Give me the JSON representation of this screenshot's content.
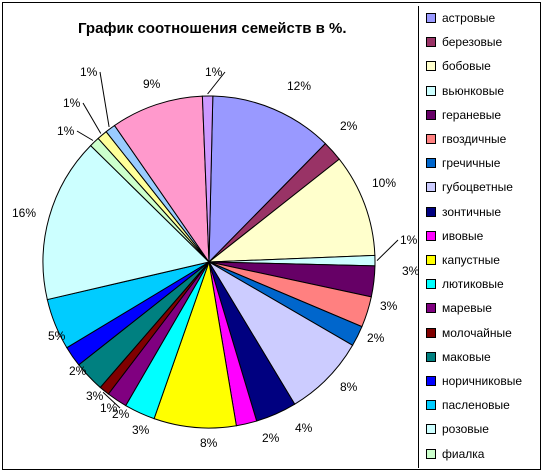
{
  "chart_data": {
    "type": "pie",
    "title": "График соотношения семейств в %.",
    "legend_position": "right",
    "slices": [
      {
        "label": "астровые",
        "value": 12,
        "value_label": "12%",
        "color": "#9999ff"
      },
      {
        "label": "березовые",
        "value": 2,
        "value_label": "2%",
        "color": "#993366"
      },
      {
        "label": "бобовые",
        "value": 10,
        "value_label": "10%",
        "color": "#ffffcc"
      },
      {
        "label": "вьюнковые",
        "value": 1,
        "value_label": "1%",
        "color": "#ccffff"
      },
      {
        "label": "гераневые",
        "value": 3,
        "value_label": "3%",
        "color": "#660066"
      },
      {
        "label": "гвоздичные",
        "value": 3,
        "value_label": "3%",
        "color": "#ff8080"
      },
      {
        "label": "гречичные",
        "value": 2,
        "value_label": "2%",
        "color": "#0066cc"
      },
      {
        "label": "губоцветные",
        "value": 8,
        "value_label": "8%",
        "color": "#ccccff"
      },
      {
        "label": "зонтичные",
        "value": 4,
        "value_label": "4%",
        "color": "#000080"
      },
      {
        "label": "ивовые",
        "value": 2,
        "value_label": "2%",
        "color": "#ff00ff"
      },
      {
        "label": "капустные",
        "value": 8,
        "value_label": "8%",
        "color": "#ffff00"
      },
      {
        "label": "лютиковые",
        "value": 3,
        "value_label": "3%",
        "color": "#00ffff"
      },
      {
        "label": "маревые",
        "value": 2,
        "value_label": "2%",
        "color": "#800080"
      },
      {
        "label": "молочайные",
        "value": 1,
        "value_label": "1%",
        "color": "#800000"
      },
      {
        "label": "маковые",
        "value": 3,
        "value_label": "3%",
        "color": "#008080"
      },
      {
        "label": "норичниковые",
        "value": 2,
        "value_label": "2%",
        "color": "#0000ff"
      },
      {
        "label": "пасленовые",
        "value": 5,
        "value_label": "5%",
        "color": "#00ccff"
      },
      {
        "label": "розовые",
        "value": 16,
        "value_label": "16%",
        "color": "#ccffff"
      },
      {
        "label": "фиалка",
        "value": 1,
        "value_label": "1%",
        "color": "#ccffcc"
      },
      {
        "label": "",
        "value": 1,
        "value_label": "1%",
        "color": "#ffff99"
      },
      {
        "label": "",
        "value": 1,
        "value_label": "1%",
        "color": "#99ccff"
      },
      {
        "label": "",
        "value": 9,
        "value_label": "9%",
        "color": "#ff99cc"
      },
      {
        "label": "",
        "value": 1,
        "value_label": "1%",
        "color": "#cc99ff"
      }
    ]
  }
}
